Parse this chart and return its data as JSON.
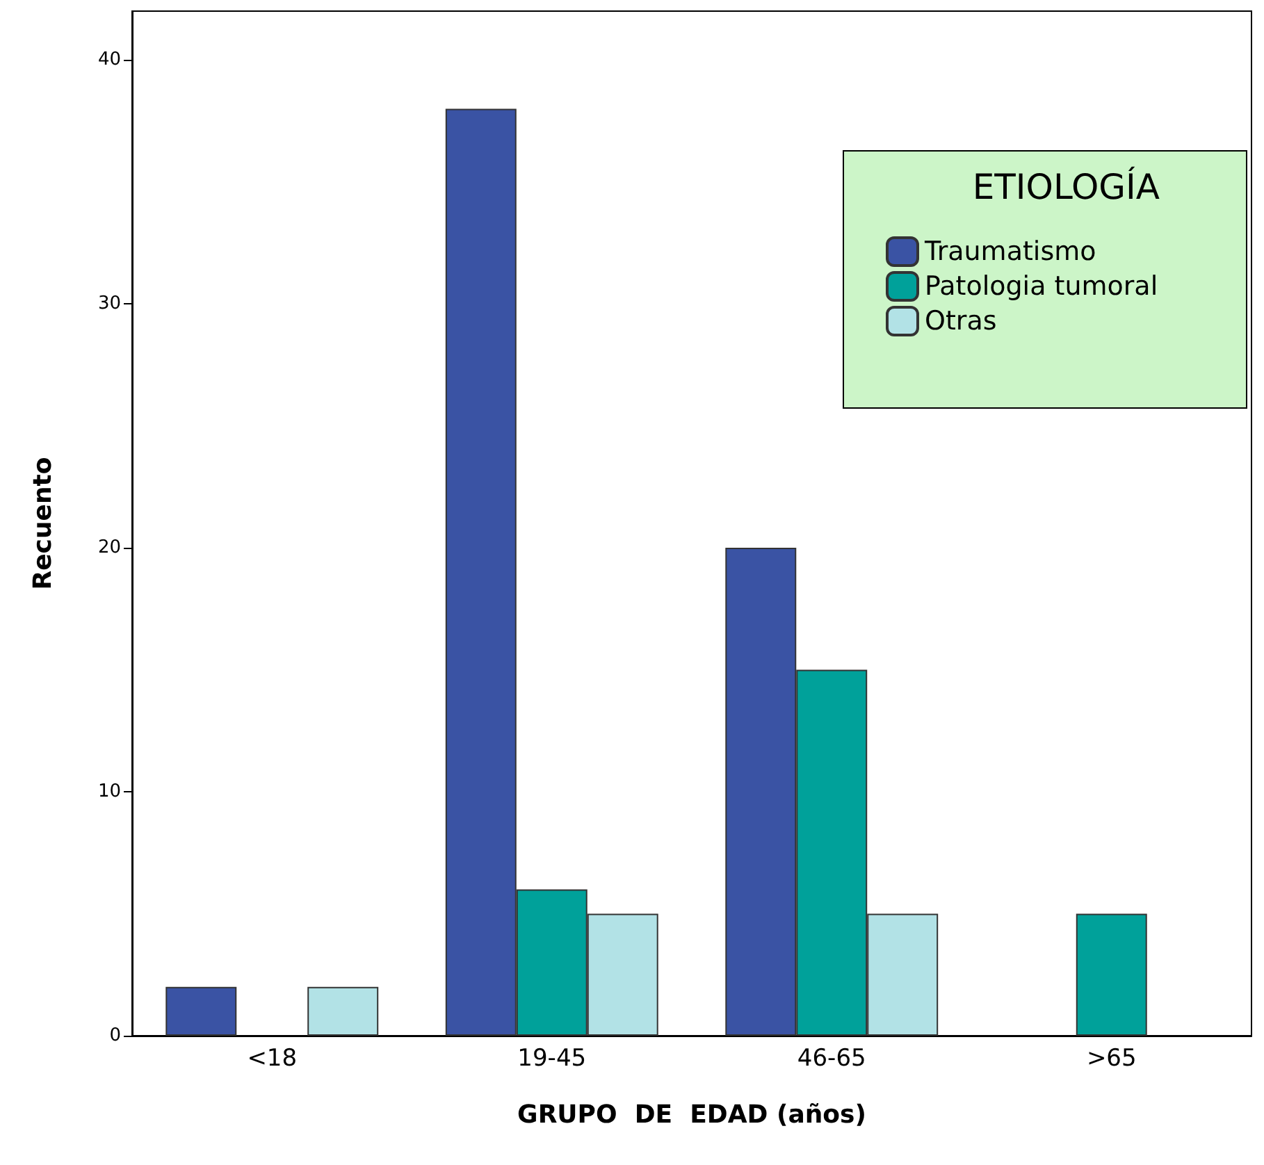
{
  "chart_data": {
    "type": "bar",
    "xlabel": "GRUPO  DE  EDAD (años)",
    "ylabel": "Recuento",
    "legend_title": "ETIOLOGÍA",
    "categories": [
      "<18",
      "19-45",
      "46-65",
      ">65"
    ],
    "series": [
      {
        "name": "Traumatismo",
        "color": "#3a53a4",
        "values": [
          2,
          38,
          20,
          null
        ]
      },
      {
        "name": "Patologia tumoral",
        "color": "#00a19a",
        "values": [
          null,
          6,
          15,
          5
        ]
      },
      {
        "name": "Otras",
        "color": "#b2e2e6",
        "values": [
          2,
          5,
          5,
          null
        ]
      }
    ],
    "ylim": [
      0,
      42
    ],
    "yticks": [
      0,
      10,
      20,
      30,
      40
    ],
    "grid": false,
    "legend": "top right"
  }
}
